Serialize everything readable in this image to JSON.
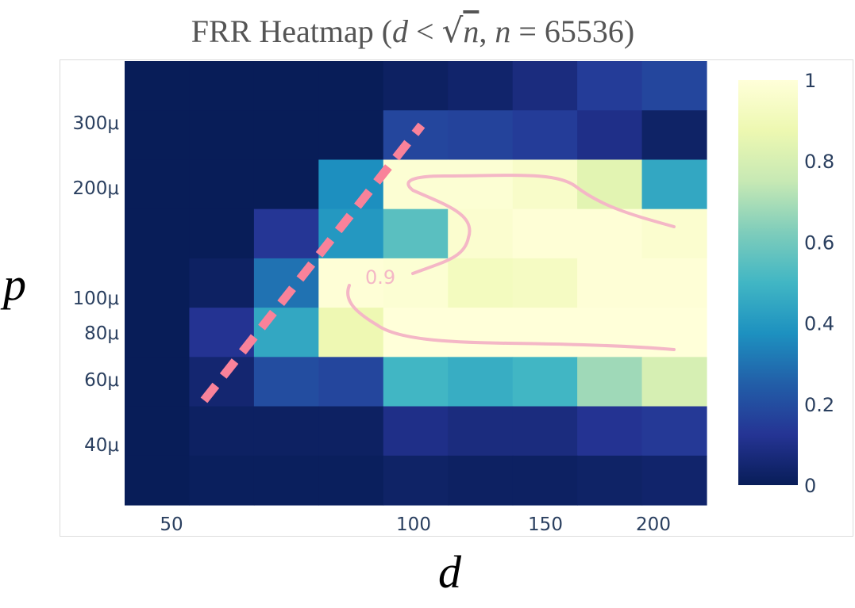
{
  "title": {
    "prefix": "FRR Heatmap (",
    "d": "d",
    "lt": " < ",
    "sqrt": "√",
    "n_under_root": "n",
    "comma": ", ",
    "n": "n",
    "eq_value": " = 65536)"
  },
  "chart_data": {
    "type": "heatmap",
    "title": "FRR Heatmap (d < √n, n = 65536)",
    "xlabel": "d",
    "ylabel": "p",
    "x_tick_labels": [
      "50",
      "100",
      "150",
      "200"
    ],
    "y_tick_labels": [
      "300μ",
      "200μ",
      "100μ",
      "80μ",
      "60μ",
      "40μ"
    ],
    "colorscale": [
      "#081d58",
      "#253494",
      "#225ea8",
      "#1d91c0",
      "#41b6c4",
      "#7fcdbb",
      "#c7e9b4",
      "#edf8b1",
      "#ffffd9"
    ],
    "colorbar": {
      "range": [
        0,
        1
      ],
      "tick_labels": [
        "0",
        "0.2",
        "0.4",
        "0.6",
        "0.8",
        "1"
      ]
    },
    "rows_top_to_bottom": [
      [
        0.0,
        0.0,
        0.0,
        0.0,
        0.02,
        0.04,
        0.08,
        0.15,
        0.18
      ],
      [
        0.0,
        0.0,
        0.0,
        0.0,
        0.18,
        0.17,
        0.15,
        0.1,
        0.03
      ],
      [
        0.0,
        0.0,
        0.0,
        0.37,
        0.98,
        0.98,
        0.95,
        0.84,
        0.45
      ],
      [
        0.0,
        0.0,
        0.13,
        0.4,
        0.55,
        0.97,
        0.99,
        0.99,
        0.97
      ],
      [
        0.0,
        0.02,
        0.3,
        0.99,
        0.98,
        0.92,
        0.93,
        0.99,
        0.99
      ],
      [
        0.0,
        0.12,
        0.45,
        0.88,
        1.0,
        1.0,
        1.0,
        1.0,
        1.0
      ],
      [
        0.0,
        0.05,
        0.2,
        0.18,
        0.5,
        0.47,
        0.5,
        0.68,
        0.8
      ],
      [
        0.0,
        0.02,
        0.02,
        0.02,
        0.1,
        0.08,
        0.08,
        0.12,
        0.14
      ],
      [
        0.0,
        0.01,
        0.01,
        0.01,
        0.03,
        0.02,
        0.02,
        0.03,
        0.04
      ]
    ],
    "contour": {
      "level": 0.9,
      "label": "0.9",
      "color": "#f4b7c6"
    },
    "boundary_line": {
      "style": "dashed",
      "color": "#f9829a"
    }
  }
}
